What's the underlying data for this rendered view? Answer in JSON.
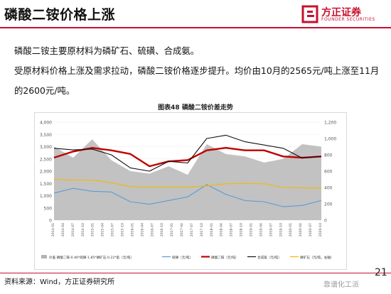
{
  "header": {
    "title": "磷酸二铵价格上涨"
  },
  "logo": {
    "name": "方正证券",
    "en": "FOUNDER SECURITIES"
  },
  "bullets": [
    "磷酸二铵主要原材料为磷矿石、硫磺、合成氨。",
    "受原材料价格上涨及需求拉动，磷酸二铵价格逐步提升。均价由10月的2565元/吨上涨至11月的2600元/吨。"
  ],
  "chart": {
    "caption": "图表48 磷酸二铵价差走势"
  },
  "footer": {
    "source": "资料来源：Wind，方正证券研究所",
    "page": "21",
    "watermark": "靠谱化工派"
  },
  "chart_data": {
    "type": "line",
    "title": "图表48 磷酸二铵价差走势",
    "x": [
      "2014-01",
      "2014-07",
      "2015-01",
      "2015-07",
      "2016-01",
      "2016-07",
      "2017-01",
      "2017-07",
      "2018-01",
      "2018-07",
      "2019-01",
      "2019-07",
      "2020-01",
      "2020-07",
      "2020-10"
    ],
    "xticks": [
      "2014-01",
      "2014-04",
      "2014-07",
      "2014-10",
      "2015-01",
      "2015-04",
      "2015-07",
      "2015-10",
      "2016-01",
      "2016-04",
      "2016-07",
      "2016-10",
      "2017-01",
      "2017-04",
      "2017-07",
      "2017-10",
      "2018-01",
      "2018-04",
      "2018-07",
      "2018-10",
      "2019-01",
      "2019-04",
      "2019-07",
      "2019-10",
      "2020-01",
      "2020-04",
      "2020-07",
      "2020-10"
    ],
    "yleft": {
      "ticks": [
        "0",
        "500",
        "1,000",
        "1,500",
        "2,000",
        "2,500",
        "3,000",
        "3,500",
        "4,000"
      ],
      "lim": [
        0,
        4000
      ]
    },
    "yright": {
      "ticks": [
        "0",
        "200",
        "400",
        "600",
        "800",
        "1,000",
        "1,200"
      ],
      "lim": [
        0,
        1200
      ]
    },
    "series": [
      {
        "name": "价差  磷酸二铵-0.46*硫磺-1.85*磷矿石-0.22*氨（元/吨）",
        "type": "area",
        "axis": "left",
        "color": "#b3b3b3",
        "values": [
          3000,
          2550,
          3300,
          2450,
          2000,
          1900,
          2200,
          1850,
          3100,
          2700,
          2600,
          2350,
          2500,
          3100,
          3000
        ]
      },
      {
        "name": "硫磺（元/吨）",
        "type": "line",
        "axis": "left",
        "color": "#5b9bd5",
        "values": [
          1100,
          1300,
          1180,
          1150,
          750,
          650,
          800,
          950,
          1450,
          1050,
          800,
          750,
          550,
          600,
          800
        ]
      },
      {
        "name": "磷酸二铵（元/吨）",
        "type": "line",
        "axis": "left",
        "color": "#c00000",
        "values": [
          2550,
          2800,
          2950,
          2850,
          2700,
          2200,
          2400,
          2450,
          2850,
          2950,
          2850,
          2850,
          2600,
          2550,
          2600
        ]
      },
      {
        "name": "合成氨（元/吨）",
        "type": "line",
        "axis": "right",
        "color": "#111111",
        "values": [
          880,
          860,
          870,
          800,
          640,
          600,
          720,
          700,
          1000,
          1040,
          960,
          920,
          880,
          760,
          780
        ]
      },
      {
        "name": "磷矿石（元/吨，右轴）",
        "type": "line",
        "axis": "right",
        "color": "#f5b800",
        "values": [
          500,
          490,
          490,
          460,
          410,
          405,
          405,
          405,
          420,
          445,
          450,
          445,
          400,
          395,
          390
        ]
      }
    ]
  }
}
